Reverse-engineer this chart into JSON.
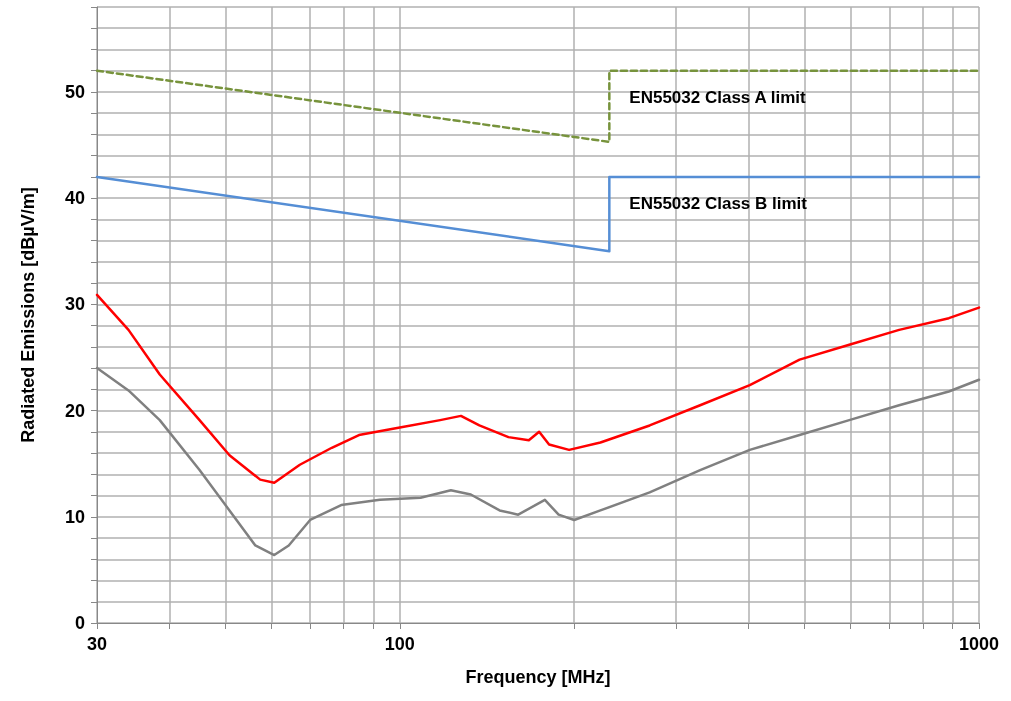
{
  "chart_data": {
    "type": "line",
    "xlabel": "Frequency [MHz]",
    "ylabel": "Radiated Emissions [dBµV/m]",
    "log": "x",
    "grid": true,
    "marker": "none",
    "legend": false,
    "xlim": [
      30,
      1000
    ],
    "ylim": [
      0,
      58
    ],
    "xticks": [
      30,
      {
        "value": 40,
        "label": null
      },
      {
        "value": 50,
        "label": null
      },
      {
        "value": 60,
        "label": null
      },
      {
        "value": 70,
        "label": null
      },
      {
        "value": 80,
        "label": null
      },
      {
        "value": 90,
        "label": null
      },
      100,
      {
        "value": 200,
        "label": null
      },
      {
        "value": 300,
        "label": null
      },
      {
        "value": 400,
        "label": null
      },
      {
        "value": 500,
        "label": null
      },
      {
        "value": 600,
        "label": null
      },
      {
        "value": 700,
        "label": null
      },
      {
        "value": 800,
        "label": null
      },
      {
        "value": 900,
        "label": null
      },
      1000
    ],
    "yticks": [
      0,
      {
        "value": 2,
        "label": null
      },
      {
        "value": 4,
        "label": null
      },
      {
        "value": 6,
        "label": null
      },
      {
        "value": 8,
        "label": null
      },
      10,
      {
        "value": 12,
        "label": null
      },
      {
        "value": 14,
        "label": null
      },
      {
        "value": 16,
        "label": null
      },
      {
        "value": 18,
        "label": null
      },
      20,
      {
        "value": 22,
        "label": null
      },
      {
        "value": 24,
        "label": null
      },
      {
        "value": 26,
        "label": null
      },
      {
        "value": 28,
        "label": null
      },
      30,
      {
        "value": 32,
        "label": null
      },
      {
        "value": 34,
        "label": null
      },
      {
        "value": 36,
        "label": null
      },
      {
        "value": 38,
        "label": null
      },
      40,
      {
        "value": 42,
        "label": null
      },
      {
        "value": 44,
        "label": null
      },
      {
        "value": 46,
        "label": null
      },
      {
        "value": 48,
        "label": null
      },
      50,
      {
        "value": 52,
        "label": null
      },
      {
        "value": 54,
        "label": null
      },
      {
        "value": 56,
        "label": null
      },
      {
        "value": 58,
        "label": null
      }
    ],
    "series": [
      {
        "color": "#ff0000",
        "line_style": "solid",
        "x": [
          30,
          34.0,
          38.5,
          45.1,
          50.8,
          57.4,
          60.7,
          67.2,
          76.3,
          85.0,
          100,
          117.4,
          127.5,
          137.2,
          154.0,
          167,
          174,
          181,
          196,
          222,
          270,
          330,
          402,
          490,
          597,
          728,
          887,
          1000
        ],
        "values": [
          30.9,
          27.6,
          23.4,
          19.1,
          15.8,
          13.5,
          13.2,
          14.9,
          16.5,
          17.7,
          18.4,
          19.1,
          19.5,
          18.6,
          17.5,
          17.2,
          18.0,
          16.8,
          16.3,
          17.0,
          18.6,
          20.5,
          22.4,
          24.8,
          26.2,
          27.6,
          28.7,
          29.7
        ]
      },
      {
        "color": "#808080",
        "line_style": "solid",
        "x": [
          30,
          34.0,
          38.5,
          45.1,
          50.8,
          56.3,
          60.7,
          64.3,
          70.0,
          79.2,
          92.4,
          108.6,
          122.5,
          132.6,
          148.7,
          160.1,
          178,
          188,
          200,
          222,
          270,
          330,
          402,
          490,
          597,
          728,
          887,
          1000
        ],
        "values": [
          24.0,
          21.9,
          19.1,
          14.4,
          10.6,
          7.3,
          6.4,
          7.3,
          9.7,
          11.1,
          11.6,
          11.8,
          12.5,
          12.1,
          10.6,
          10.2,
          11.6,
          10.2,
          9.7,
          10.6,
          12.3,
          14.4,
          16.3,
          17.7,
          19.1,
          20.5,
          21.8,
          22.9
        ]
      },
      {
        "name": "EN55032 Class A limit",
        "color": "#77933c",
        "line_style": "dashed",
        "x": [
          30,
          230,
          230,
          1000
        ],
        "values": [
          52,
          45.3,
          52,
          52
        ]
      },
      {
        "name": "EN55032 Class B limit",
        "color": "#558ed5",
        "line_style": "solid",
        "x": [
          30,
          230,
          230,
          1000
        ],
        "values": [
          42,
          35.0,
          42,
          42
        ]
      }
    ]
  }
}
